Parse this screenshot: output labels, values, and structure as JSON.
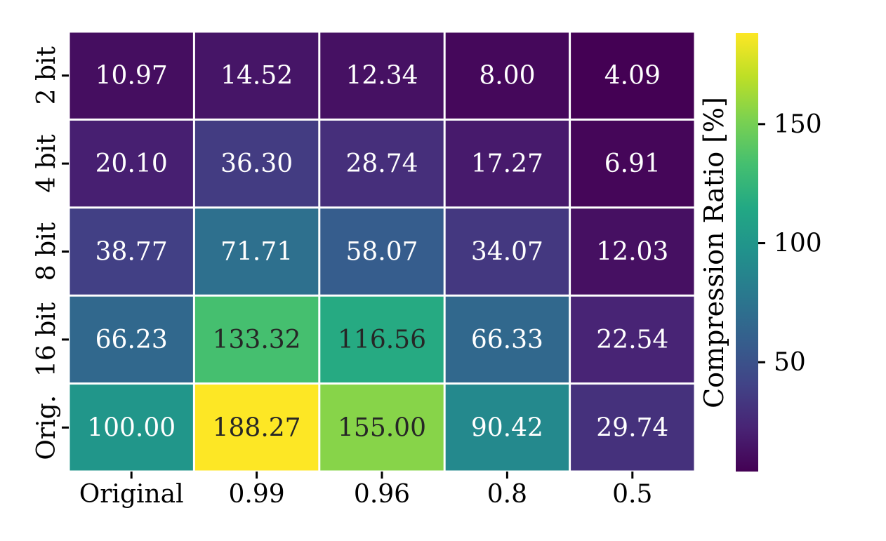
{
  "chart_data": {
    "type": "heatmap",
    "x_categories": [
      "Original",
      "0.99",
      "0.96",
      "0.8",
      "0.5"
    ],
    "y_categories": [
      "2 bit",
      "4 bit",
      "8 bit",
      "16 bit",
      "Orig."
    ],
    "values": [
      [
        10.97,
        14.52,
        12.34,
        8.0,
        4.09
      ],
      [
        20.1,
        36.3,
        28.74,
        17.27,
        6.91
      ],
      [
        38.77,
        71.71,
        58.07,
        34.07,
        12.03
      ],
      [
        66.23,
        133.32,
        116.56,
        66.33,
        22.54
      ],
      [
        100.0,
        188.27,
        155.0,
        90.42,
        29.74
      ]
    ],
    "value_labels": [
      [
        "10.97",
        "14.52",
        "12.34",
        "8.00",
        "4.09"
      ],
      [
        "20.10",
        "36.30",
        "28.74",
        "17.27",
        "6.91"
      ],
      [
        "38.77",
        "71.71",
        "58.07",
        "34.07",
        "12.03"
      ],
      [
        "66.23",
        "133.32",
        "116.56",
        "66.33",
        "22.54"
      ],
      [
        "100.00",
        "188.27",
        "155.00",
        "90.42",
        "29.74"
      ]
    ],
    "colormap": "viridis",
    "colorbar": {
      "label": "Compression Ratio [%]",
      "ticks": [
        50,
        100,
        150
      ],
      "tick_labels": [
        "50",
        "100",
        "150"
      ],
      "range": [
        4.09,
        188.27
      ]
    },
    "xlabel": "",
    "ylabel": "",
    "grid": false,
    "legend": "colorbar-right"
  }
}
